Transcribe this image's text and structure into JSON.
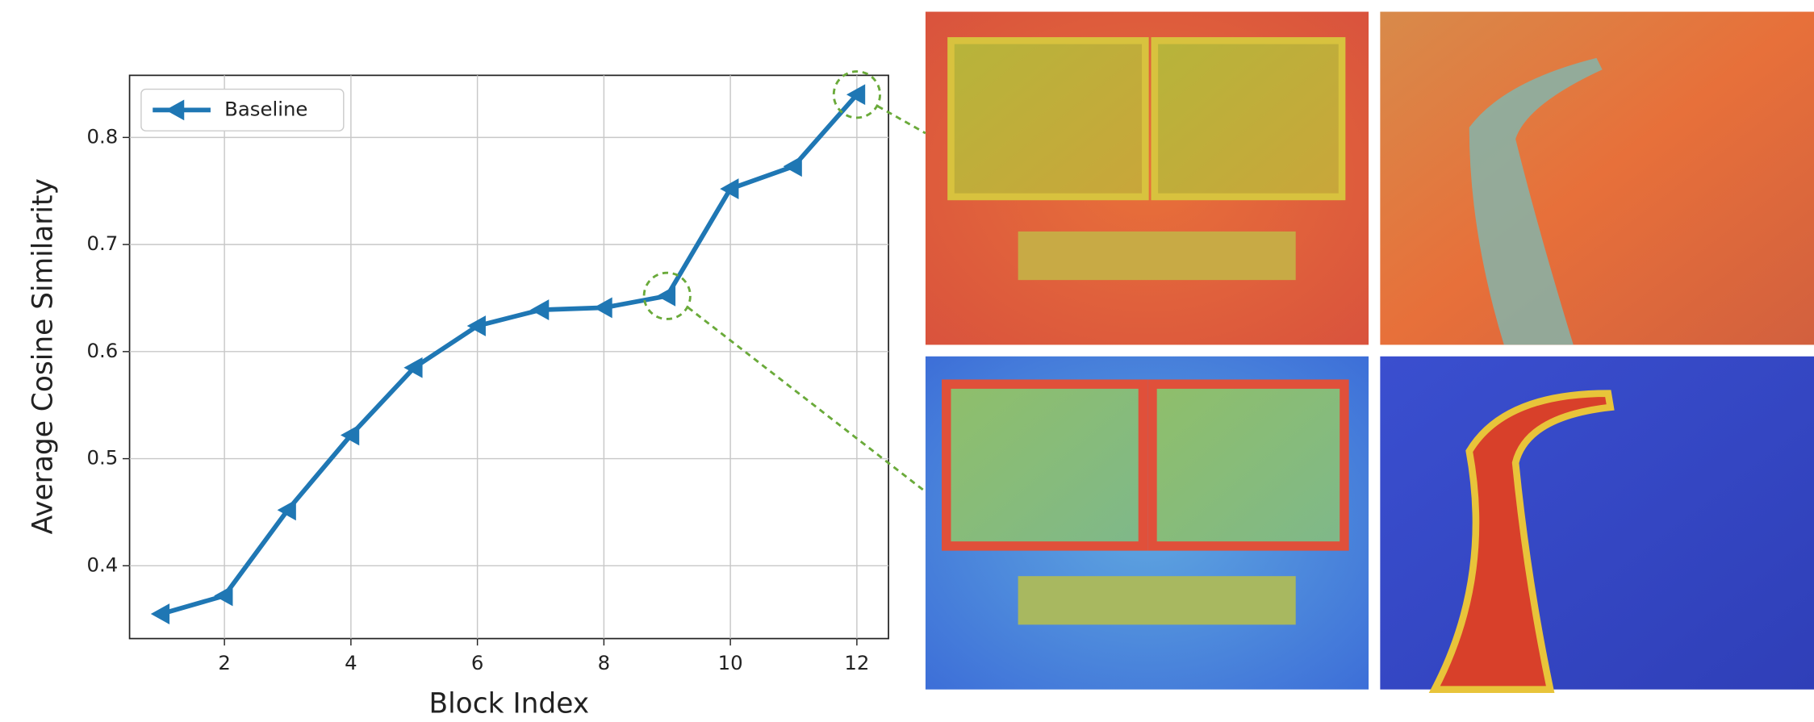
{
  "chart_data": {
    "type": "line",
    "x_label": "Block Index",
    "y_label": "Average Cosine Similarity",
    "x": [
      1,
      2,
      3,
      4,
      5,
      6,
      7,
      8,
      9,
      10,
      11,
      12
    ],
    "series": [
      {
        "name": "Baseline",
        "color": "#1f77b4",
        "marker": "left-triangle",
        "values": [
          0.355,
          0.372,
          0.452,
          0.522,
          0.585,
          0.624,
          0.639,
          0.641,
          0.652,
          0.752,
          0.773,
          0.84
        ]
      }
    ],
    "xlim": [
      0.5,
      12.5
    ],
    "ylim": [
      0.332,
      0.858
    ],
    "xticks": [
      2,
      4,
      6,
      8,
      10,
      12
    ],
    "yticks": [
      0.4,
      0.5,
      0.6,
      0.7,
      0.8
    ],
    "grid": true,
    "legend": "upper left",
    "highlight_x": [
      9,
      12
    ],
    "highlight_color": "#6aaa3a"
  }
}
